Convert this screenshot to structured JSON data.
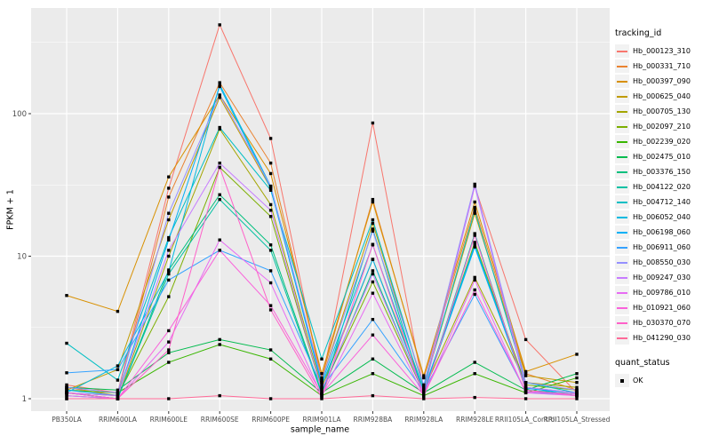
{
  "figure": {
    "background": "#FFFFFF",
    "panel_background": "#EBEBEB",
    "grid_color": "#FFFFFF",
    "tick_color": "#333333",
    "tick_label_color": "#4D4D4D",
    "point_color": "#000000"
  },
  "axes": {
    "x_title": "sample_name",
    "y_title": "FPKM + 1"
  },
  "legend": {
    "color_title": "tracking_id",
    "shape_title": "quant_status",
    "shape_items": [
      {
        "label": "OK",
        "marker": "black-square"
      }
    ]
  },
  "chart_data": {
    "type": "line",
    "title": "",
    "xlabel": "sample_name",
    "ylabel": "FPKM + 1",
    "yscale": "log10",
    "yticks": [
      1,
      10,
      100
    ],
    "ytick_labels": [
      "1",
      "10",
      "100"
    ],
    "yminor_breaks": [
      3.162,
      31.62,
      316.2
    ],
    "ylim": [
      0.83,
      485
    ],
    "grid": true,
    "legend_position": "right",
    "point_marker": "filled-square",
    "categories": [
      "PB350LA",
      "RRIM600LA",
      "RRIM600LE",
      "RRIM600SE",
      "RRIM600PE",
      "RRIM901LA",
      "RRIM928BA",
      "RRIM928LA",
      "RRIM928LE",
      "RRII105LA_Control",
      "RRII105LA_Stressed"
    ],
    "series": [
      {
        "name": "Hb_000123_310",
        "color": "#F8766D",
        "values": [
          1.25,
          1.1,
          30,
          420,
          67,
          1.3,
          86,
          1.15,
          31,
          2.6,
          1.1
        ]
      },
      {
        "name": "Hb_000331_710",
        "color": "#EA8331",
        "values": [
          1.2,
          1.05,
          26,
          165,
          45,
          1.4,
          25,
          1.4,
          22,
          1.5,
          1.15
        ]
      },
      {
        "name": "Hb_000397_090",
        "color": "#D89000",
        "values": [
          5.3,
          4.1,
          36,
          135,
          38,
          1.5,
          24,
          1.45,
          24,
          1.55,
          2.05
        ]
      },
      {
        "name": "Hb_000625_040",
        "color": "#C09B00",
        "values": [
          1.15,
          1.6,
          18,
          130,
          30,
          1.35,
          17,
          1.2,
          20,
          1.45,
          1.3
        ]
      },
      {
        "name": "Hb_000705_130",
        "color": "#A3A500",
        "values": [
          1.1,
          1.0,
          10,
          78,
          23,
          1.2,
          9.5,
          1.15,
          7.1,
          1.3,
          1.2
        ]
      },
      {
        "name": "Hb_002097_210",
        "color": "#7CAE00",
        "values": [
          1.1,
          1.05,
          5.2,
          42,
          19,
          1.15,
          6.6,
          1.1,
          12.5,
          1.25,
          1.15
        ]
      },
      {
        "name": "Hb_002239_020",
        "color": "#39B600",
        "values": [
          1.15,
          1.1,
          1.8,
          2.4,
          1.9,
          1.05,
          1.5,
          1.05,
          1.5,
          1.1,
          1.4
        ]
      },
      {
        "name": "Hb_002475_010",
        "color": "#00BB4E",
        "values": [
          1.2,
          1.15,
          2.1,
          2.6,
          2.2,
          1.1,
          1.9,
          1.1,
          1.8,
          1.15,
          1.5
        ]
      },
      {
        "name": "Hb_003376_150",
        "color": "#00BF7D",
        "values": [
          1.1,
          1.0,
          8.0,
          27,
          12,
          1.1,
          7.9,
          1.08,
          12,
          1.2,
          1.1
        ]
      },
      {
        "name": "Hb_004122_020",
        "color": "#00C1A3",
        "values": [
          1.05,
          1.0,
          7.5,
          25,
          11,
          1.08,
          15.5,
          1.06,
          14.4,
          1.15,
          1.08
        ]
      },
      {
        "name": "Hb_004712_140",
        "color": "#00BFC4",
        "values": [
          2.45,
          1.35,
          13.5,
          80,
          29,
          1.9,
          18,
          1.2,
          21,
          1.3,
          1.1
        ]
      },
      {
        "name": "Hb_006052_040",
        "color": "#00BAE0",
        "values": [
          1.1,
          1.7,
          7.8,
          160,
          31,
          1.3,
          12,
          1.15,
          12,
          1.2,
          1.05
        ]
      },
      {
        "name": "Hb_006198_060",
        "color": "#00B0F6",
        "values": [
          1.15,
          1.05,
          13,
          155,
          30,
          1.25,
          9.5,
          1.1,
          11.6,
          1.18,
          1.1
        ]
      },
      {
        "name": "Hb_006911_060",
        "color": "#35A2FF",
        "values": [
          1.52,
          1.6,
          6.8,
          11,
          7.9,
          1.2,
          3.6,
          1.12,
          5.4,
          1.12,
          1.05
        ]
      },
      {
        "name": "Hb_008550_030",
        "color": "#9590FF",
        "values": [
          1.2,
          1.1,
          20,
          135,
          31,
          1.35,
          15,
          1.25,
          32,
          1.3,
          1.15
        ]
      },
      {
        "name": "Hb_009247_030",
        "color": "#C77CFF",
        "values": [
          1.1,
          1.05,
          11,
          45,
          21,
          1.15,
          7.5,
          1.1,
          31,
          1.2,
          1.1
        ]
      },
      {
        "name": "Hb_009786_010",
        "color": "#E76BF3",
        "values": [
          1.05,
          1.0,
          2.5,
          13,
          6.5,
          1.05,
          5.5,
          1.05,
          6.8,
          1.1,
          1.05
        ]
      },
      {
        "name": "Hb_010921_060",
        "color": "#FA62DB",
        "values": [
          1.1,
          1.0,
          3.0,
          11,
          4.5,
          1.08,
          2.8,
          1.06,
          5.8,
          1.12,
          1.08
        ]
      },
      {
        "name": "Hb_030370_070",
        "color": "#FF61C9",
        "values": [
          1.0,
          1.0,
          2.2,
          42,
          4.2,
          1.02,
          12.1,
          1.04,
          14,
          1.15,
          1.05
        ]
      },
      {
        "name": "Hb_041290_030",
        "color": "#FF6A98",
        "values": [
          1.0,
          1.0,
          1.0,
          1.05,
          1.0,
          1.0,
          1.05,
          1.0,
          1.02,
          1.0,
          1.0
        ]
      }
    ]
  }
}
